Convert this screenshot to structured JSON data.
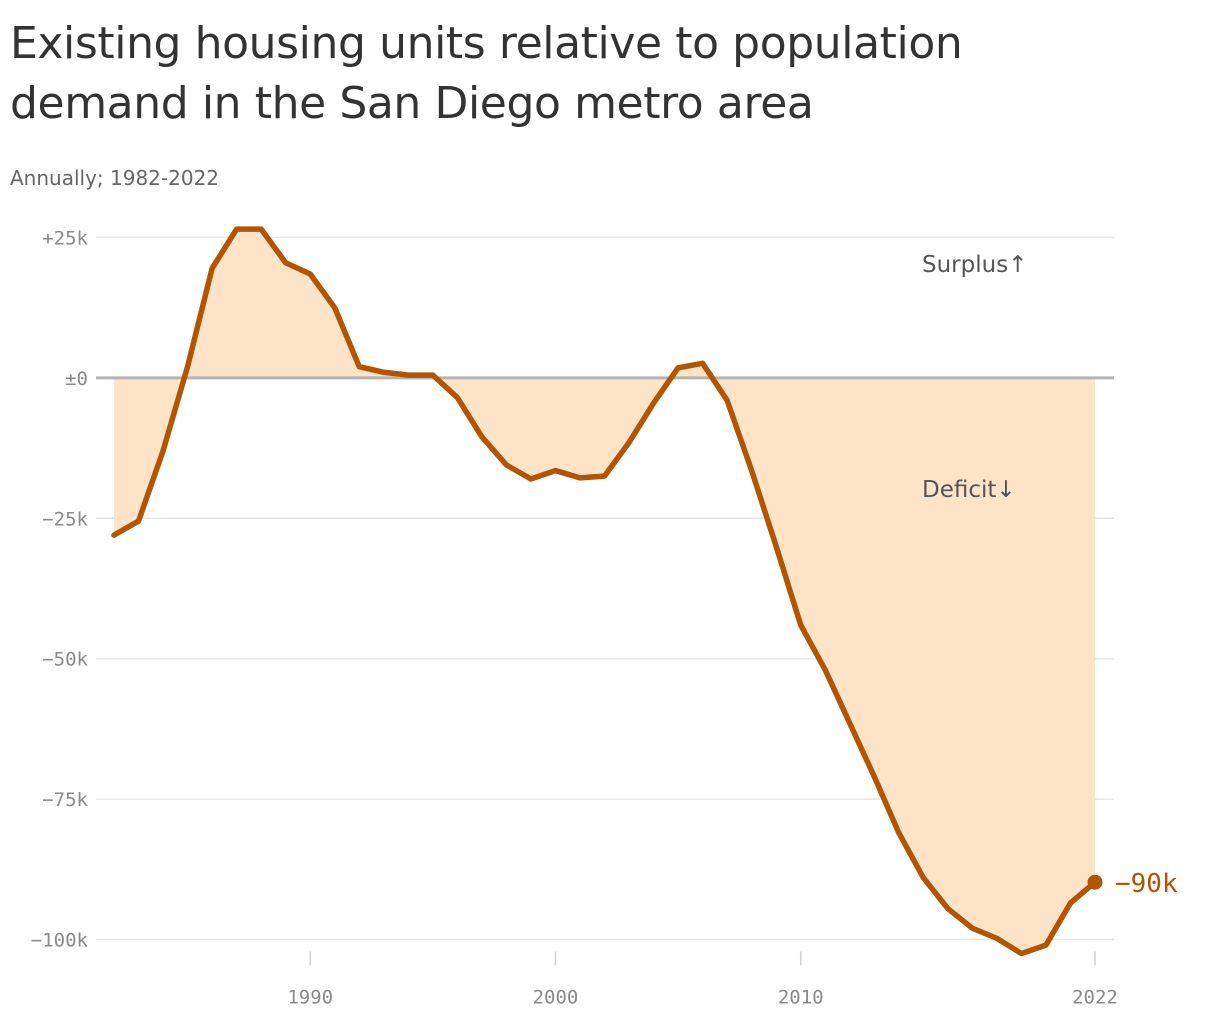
{
  "title": "Existing housing units relative to population demand in the San Diego metro area",
  "subtitle": "Annually; 1982-2022",
  "colors": {
    "line": "#b35400",
    "fill": "#fde4c8",
    "grid": "#e6e6e6",
    "zero": "#b3b3b3"
  },
  "chart_data": {
    "type": "area",
    "title": "Existing housing units relative to population demand in the San Diego metro area",
    "subtitle": "Annually; 1982-2022",
    "xlabel": "",
    "ylabel": "",
    "xlim": [
      1982,
      2022
    ],
    "ylim": [
      -100000,
      25000
    ],
    "y_ticks": [
      25000,
      0,
      -25000,
      -50000,
      -75000,
      -100000
    ],
    "y_tick_labels": [
      "+25k",
      "±0",
      "−25k",
      "−50k",
      "−75k",
      "−100k"
    ],
    "x_ticks": [
      1990,
      2000,
      2010,
      2022
    ],
    "x_tick_labels": [
      "1990",
      "2000",
      "2010",
      "2022"
    ],
    "grid": true,
    "annotations": {
      "surplus": "Surplus↑",
      "deficit": "Deficit↓",
      "end_value": "−90k"
    },
    "x": [
      1982,
      1983,
      1984,
      1985,
      1986,
      1987,
      1988,
      1989,
      1990,
      1991,
      1992,
      1993,
      1994,
      1995,
      1996,
      1997,
      1998,
      1999,
      2000,
      2001,
      2002,
      2003,
      2004,
      2005,
      2006,
      2007,
      2008,
      2009,
      2010,
      2011,
      2012,
      2013,
      2014,
      2015,
      2016,
      2017,
      2018,
      2019,
      2020,
      2021,
      2022
    ],
    "values": [
      -28000,
      -25500,
      -13000,
      2000,
      19500,
      26500,
      26500,
      20500,
      18500,
      12500,
      2000,
      1000,
      500,
      500,
      -3500,
      -10500,
      -15500,
      -18000,
      -16500,
      -17800,
      -17500,
      -11500,
      -4500,
      1800,
      2600,
      -4000,
      -16500,
      -30000,
      -44000,
      -52000,
      -61500,
      -71000,
      -81000,
      -89000,
      -94500,
      -98000,
      -99800,
      -102500,
      -101000,
      -93500,
      -89800
    ]
  }
}
